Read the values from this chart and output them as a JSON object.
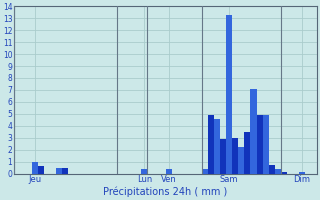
{
  "title": "",
  "xlabel": "Précipitations 24h ( mm )",
  "background_color": "#cce8e8",
  "bar_color_dark": "#1133bb",
  "bar_color_light": "#3366dd",
  "grid_color": "#aacccc",
  "axis_label_color": "#2244bb",
  "ylim": [
    0,
    14
  ],
  "yticks": [
    0,
    1,
    2,
    3,
    4,
    5,
    6,
    7,
    8,
    9,
    10,
    11,
    12,
    13,
    14
  ],
  "day_labels": [
    "Jeu",
    "Lun",
    "Ven",
    "Sam",
    "Dim"
  ],
  "day_tick_positions": [
    3,
    21,
    25,
    35,
    47
  ],
  "vline_positions": [
    0,
    17,
    22,
    31,
    44
  ],
  "n_bars": 50,
  "values": [
    0,
    0,
    0,
    1.0,
    0.6,
    0,
    0,
    0.5,
    0.5,
    0,
    0,
    0,
    0,
    0,
    0,
    0,
    0,
    0,
    0,
    0,
    0,
    0.4,
    0,
    0,
    0,
    0.4,
    0,
    0,
    0,
    0,
    0,
    0.4,
    4.9,
    4.6,
    2.9,
    13.3,
    3.0,
    2.2,
    3.5,
    7.1,
    4.9,
    4.9,
    0.7,
    0.4,
    0.1,
    0,
    0,
    0.1,
    0,
    0
  ]
}
